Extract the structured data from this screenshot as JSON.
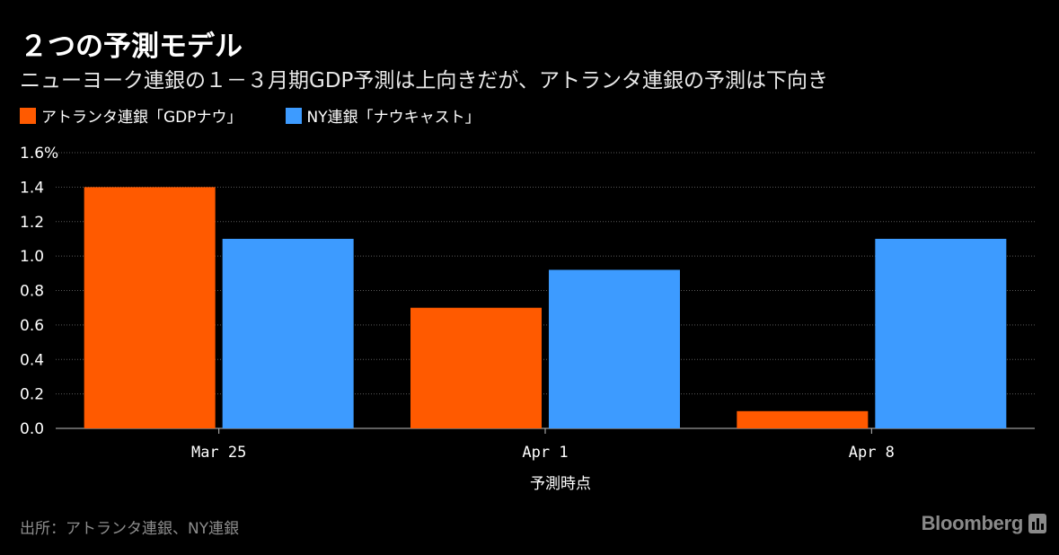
{
  "title": "２つの予測モデル",
  "subtitle": "ニューヨーク連銀の１－３月期GDP予測は上向きだが、アトランタ連銀の予測は下向き",
  "source": "出所：アトランタ連銀、NY連銀",
  "brand": "Bloomberg",
  "chart_data": {
    "type": "bar",
    "categories": [
      "Mar 25",
      "Apr 1",
      "Apr 8"
    ],
    "series": [
      {
        "name": "アトランタ連銀「GDPナウ」",
        "color": "#ff5a00",
        "values": [
          1.4,
          0.7,
          0.1
        ]
      },
      {
        "name": "NY連銀「ナウキャスト」",
        "color": "#3d9bff",
        "values": [
          1.1,
          0.92,
          1.1
        ]
      }
    ],
    "xlabel": "予測時点",
    "ylabel": "",
    "ylim": [
      0,
      1.6
    ],
    "yticks": [
      "0.0",
      "0.2",
      "0.4",
      "0.6",
      "0.8",
      "1.0",
      "1.2",
      "1.4",
      "1.6%"
    ],
    "grid": true,
    "legend": "top-left"
  }
}
